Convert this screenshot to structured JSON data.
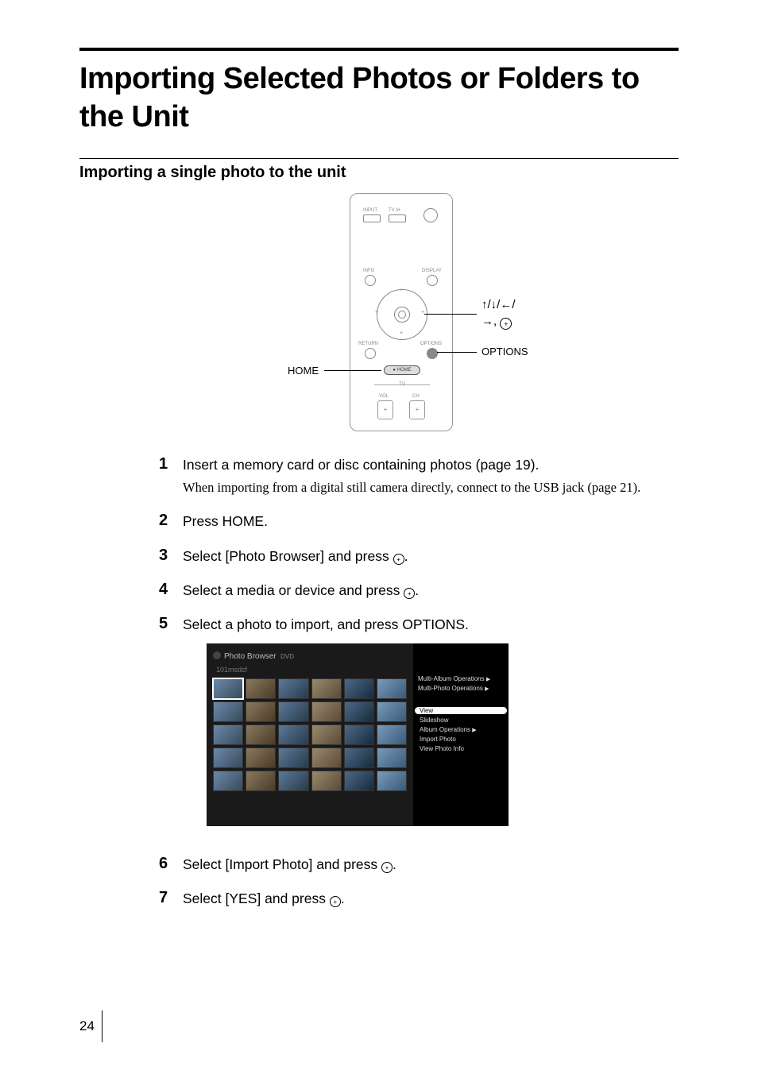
{
  "page": {
    "title": "Importing Selected Photos or Folders to the Unit",
    "subtitle": "Importing a single photo to the unit",
    "number": "24"
  },
  "remote": {
    "labels": {
      "input": "INPUT",
      "tv_power": "TV I/•",
      "info": "INFO",
      "display": "DISPLAY",
      "return": "RETURN",
      "options": "OPTIONS",
      "home_btn": "● HOME",
      "tv": "TV",
      "vol": "VOL",
      "ch": "CH"
    },
    "callouts": {
      "home": "HOME",
      "options": "OPTIONS",
      "arrows": "↑/↓/←/→, "
    }
  },
  "steps": [
    {
      "num": "1",
      "main": "Insert a memory card or disc containing photos (page 19).",
      "note": "When importing from a digital still camera directly, connect to the USB jack (page 21)."
    },
    {
      "num": "2",
      "main": "Press HOME."
    },
    {
      "num": "3",
      "main_pre": "Select [Photo Browser] and press ",
      "main_post": "."
    },
    {
      "num": "4",
      "main_pre": "Select a media or device and press ",
      "main_post": "."
    },
    {
      "num": "5",
      "main": "Select a photo to import, and press OPTIONS."
    },
    {
      "num": "6",
      "main_pre": "Select [Import Photo] and press ",
      "main_post": "."
    },
    {
      "num": "7",
      "main_pre": "Select [YES] and press ",
      "main_post": "."
    }
  ],
  "screenshot": {
    "title_app": "Photo Browser",
    "title_src": "DVD",
    "folder": "101msdcf",
    "menu_grp1": [
      "Multi-Album Operations",
      "Multi-Photo Operations"
    ],
    "menu_selected": "View",
    "menu_grp2": [
      "Slideshow",
      "Album Operations",
      "Import Photo",
      "View Photo Info"
    ],
    "thumb_count": 30,
    "colors": {
      "bg": "#1a1a1a",
      "panel": "#000000",
      "text": "#dddddd",
      "muted": "#777777",
      "thumb_a": "#4a6a8a",
      "thumb_b": "#2a3a4a",
      "sel_bg": "#ffffff",
      "sel_fg": "#000000"
    }
  }
}
